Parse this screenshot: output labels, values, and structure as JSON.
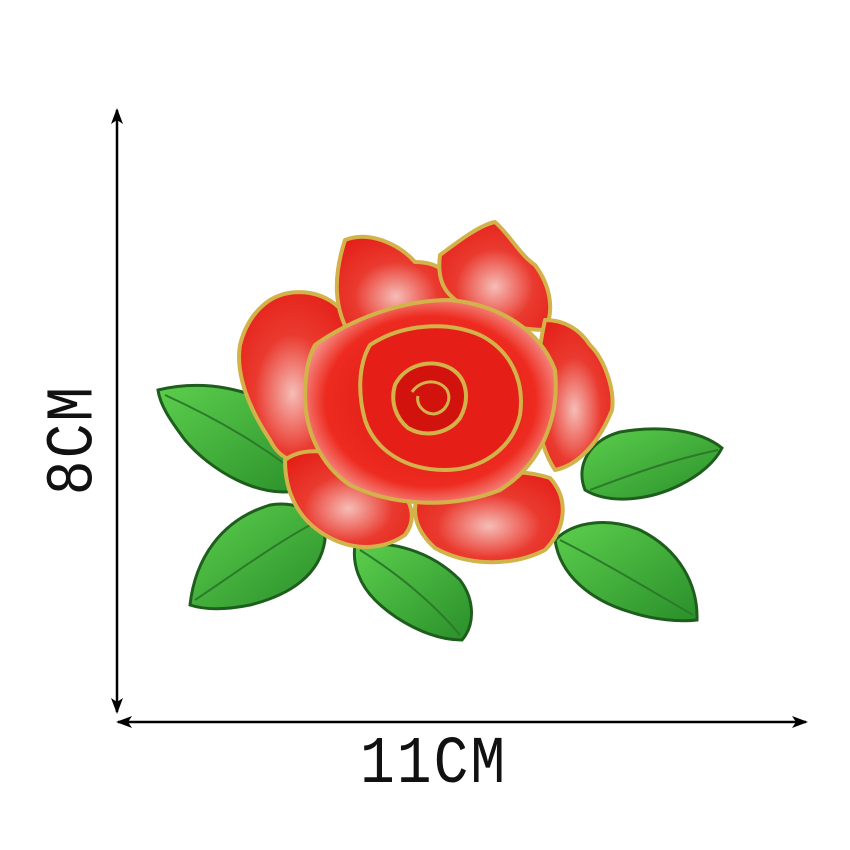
{
  "dimensions": {
    "width_label": "11CM",
    "height_label": "8CM"
  },
  "subject": {
    "icon": "rose-embroidery-patch",
    "colors": {
      "petal_red": "#e8221c",
      "petal_light": "#f7c7c4",
      "gold_outline": "#d4b24a",
      "leaf_green": "#3fb23a",
      "leaf_dark": "#1f6a1e",
      "line": "#000000"
    }
  }
}
